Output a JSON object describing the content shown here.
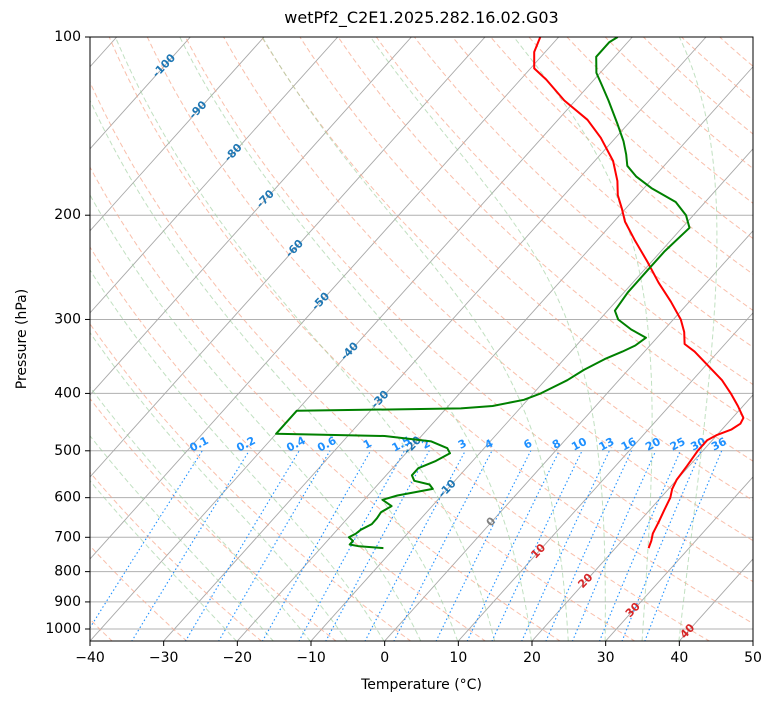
{
  "chart_data": {
    "type": "skew-t",
    "title": "wetPf2_C2E1.2025.282.16.02.G03",
    "xlabel": "Temperature (°C)",
    "ylabel": "Pressure (hPa)",
    "xlim": [
      -40,
      50
    ],
    "ylim": [
      1050,
      100
    ],
    "y_scale": "log",
    "x_ticks": [
      -40,
      -30,
      -20,
      -10,
      0,
      10,
      20,
      30,
      40,
      50
    ],
    "x_tick_labels": [
      "−40",
      "−30",
      "−20",
      "−10",
      "0",
      "10",
      "20",
      "30",
      "40",
      "50"
    ],
    "y_ticks": [
      100,
      200,
      300,
      400,
      500,
      600,
      700,
      800,
      900,
      1000
    ],
    "y_tick_labels": [
      "100",
      "200",
      "300",
      "400",
      "500",
      "600",
      "700",
      "800",
      "900",
      "1000"
    ],
    "grid": true,
    "isotherm_labels": [
      "-100",
      "-90",
      "-80",
      "-70",
      "-60",
      "-50",
      "-40",
      "-30",
      "-20",
      "-10",
      "0",
      "10",
      "20",
      "30",
      "40"
    ],
    "mixing_ratio_labels": [
      "0.1",
      "0.2",
      "0.4",
      "0.6",
      "1",
      "1.5",
      "2",
      "3",
      "4",
      "6",
      "8",
      "10",
      "13",
      "16",
      "20",
      "25",
      "30",
      "36"
    ],
    "series": [
      {
        "color": "#ff0000",
        "points": [
          {
            "p": 730,
            "t": 24.5
          },
          {
            "p": 710,
            "t": 24.0
          },
          {
            "p": 690,
            "t": 23.3
          },
          {
            "p": 660,
            "t": 22.7
          },
          {
            "p": 630,
            "t": 22.0
          },
          {
            "p": 600,
            "t": 21.3
          },
          {
            "p": 580,
            "t": 20.5
          },
          {
            "p": 560,
            "t": 20.0
          },
          {
            "p": 530,
            "t": 19.7
          },
          {
            "p": 500,
            "t": 19.3
          },
          {
            "p": 480,
            "t": 19.3
          },
          {
            "p": 470,
            "t": 20.0
          },
          {
            "p": 460,
            "t": 21.3
          },
          {
            "p": 450,
            "t": 21.8
          },
          {
            "p": 440,
            "t": 21.5
          },
          {
            "p": 420,
            "t": 19.3
          },
          {
            "p": 400,
            "t": 16.8
          },
          {
            "p": 380,
            "t": 14.0
          },
          {
            "p": 360,
            "t": 10.5
          },
          {
            "p": 340,
            "t": 6.8
          },
          {
            "p": 330,
            "t": 4.5
          },
          {
            "p": 315,
            "t": 3.0
          },
          {
            "p": 300,
            "t": 1.0
          },
          {
            "p": 280,
            "t": -2.5
          },
          {
            "p": 260,
            "t": -6.5
          },
          {
            "p": 240,
            "t": -10.5
          },
          {
            "p": 220,
            "t": -15.0
          },
          {
            "p": 205,
            "t": -18.5
          },
          {
            "p": 195,
            "t": -20.5
          },
          {
            "p": 185,
            "t": -22.7
          },
          {
            "p": 175,
            "t": -24.5
          },
          {
            "p": 162,
            "t": -27.5
          },
          {
            "p": 148,
            "t": -32.0
          },
          {
            "p": 138,
            "t": -36.0
          },
          {
            "p": 128,
            "t": -41.5
          },
          {
            "p": 118,
            "t": -46.5
          },
          {
            "p": 113,
            "t": -49.5
          },
          {
            "p": 106,
            "t": -51.5
          },
          {
            "p": 100,
            "t": -52.5
          }
        ]
      },
      {
        "color": "#008000",
        "points": [
          {
            "p": 730,
            "t": -11.5
          },
          {
            "p": 725,
            "t": -15.0
          },
          {
            "p": 720,
            "t": -16.5
          },
          {
            "p": 710,
            "t": -16.5
          },
          {
            "p": 700,
            "t": -17.5
          },
          {
            "p": 690,
            "t": -17.0
          },
          {
            "p": 680,
            "t": -16.8
          },
          {
            "p": 665,
            "t": -16.0
          },
          {
            "p": 650,
            "t": -16.0
          },
          {
            "p": 635,
            "t": -16.2
          },
          {
            "p": 620,
            "t": -15.5
          },
          {
            "p": 605,
            "t": -17.5
          },
          {
            "p": 595,
            "t": -16.0
          },
          {
            "p": 580,
            "t": -12.0
          },
          {
            "p": 570,
            "t": -13.0
          },
          {
            "p": 562,
            "t": -15.5
          },
          {
            "p": 550,
            "t": -16.5
          },
          {
            "p": 535,
            "t": -16.5
          },
          {
            "p": 520,
            "t": -15.0
          },
          {
            "p": 505,
            "t": -14.0
          },
          {
            "p": 495,
            "t": -15.0
          },
          {
            "p": 482,
            "t": -18.0
          },
          {
            "p": 472,
            "t": -25.0
          },
          {
            "p": 468,
            "t": -40.0
          },
          {
            "p": 428,
            "t": -40.0
          },
          {
            "p": 424,
            "t": -18.0
          },
          {
            "p": 420,
            "t": -14.0
          },
          {
            "p": 410,
            "t": -10.5
          },
          {
            "p": 400,
            "t": -9.0
          },
          {
            "p": 380,
            "t": -7.0
          },
          {
            "p": 365,
            "t": -6.0
          },
          {
            "p": 350,
            "t": -4.5
          },
          {
            "p": 340,
            "t": -3.0
          },
          {
            "p": 332,
            "t": -2.0
          },
          {
            "p": 322,
            "t": -1.5
          },
          {
            "p": 312,
            "t": -4.5
          },
          {
            "p": 300,
            "t": -7.5
          },
          {
            "p": 290,
            "t": -9.0
          },
          {
            "p": 270,
            "t": -9.5
          },
          {
            "p": 250,
            "t": -9.5
          },
          {
            "p": 230,
            "t": -9.5
          },
          {
            "p": 210,
            "t": -9.0
          },
          {
            "p": 200,
            "t": -11.0
          },
          {
            "p": 190,
            "t": -14.0
          },
          {
            "p": 180,
            "t": -19.0
          },
          {
            "p": 172,
            "t": -22.5
          },
          {
            "p": 165,
            "t": -25.0
          },
          {
            "p": 158,
            "t": -26.5
          },
          {
            "p": 150,
            "t": -28.5
          },
          {
            "p": 140,
            "t": -31.5
          },
          {
            "p": 128,
            "t": -35.5
          },
          {
            "p": 120,
            "t": -38.5
          },
          {
            "p": 115,
            "t": -40.5
          },
          {
            "p": 108,
            "t": -42.5
          },
          {
            "p": 102,
            "t": -42.5
          },
          {
            "p": 100,
            "t": -42.0
          }
        ]
      }
    ]
  }
}
